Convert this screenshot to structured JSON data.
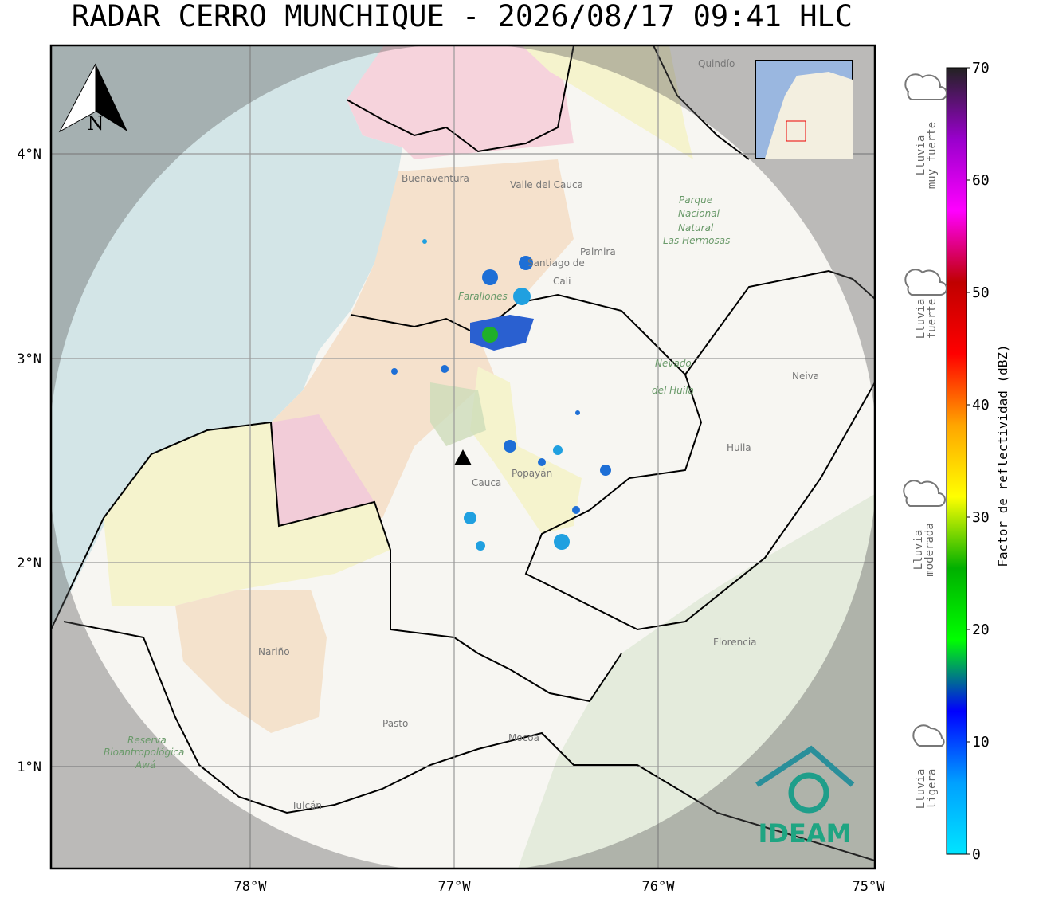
{
  "title": "RADAR CERRO MUNCHIQUE - 2026/08/17 09:41 HLC",
  "map": {
    "lat_labels": [
      "4°N",
      "3°N",
      "2°N",
      "1°N"
    ],
    "lon_labels": [
      "78°W",
      "77°W",
      "76°W",
      "75°W"
    ],
    "north": "N",
    "places": [
      "Buenaventura",
      "Valle del Cauca",
      "Palmira",
      "Santiago de",
      "Cali",
      "Parque",
      "Nacional",
      "Natural",
      "Las Hermosas",
      "Farallones",
      "Neiva",
      "Huila",
      "Cauca",
      "Popayán",
      "Nariño",
      "Florencia",
      "Pasto",
      "Mocoa",
      "Reserva",
      "Bioantropológica",
      "Awá",
      "Tulcán",
      "Quindío",
      "Nevado",
      "del Huila"
    ],
    "logo": "IDEAM"
  },
  "colorbar": {
    "label": "Factor de reflectividad (dBZ)",
    "lim": [
      0,
      70
    ],
    "ticks": [
      0,
      10,
      20,
      30,
      40,
      50,
      60,
      70
    ],
    "colors": [
      "#00e5ff",
      "#00a0ff",
      "#0000ff",
      "#00ff00",
      "#00b000",
      "#ffff00",
      "#ffa500",
      "#ff0000",
      "#c00000",
      "#ff00ff",
      "#9900cc",
      "#222222"
    ]
  },
  "rain_levels": [
    [
      "Lluvia",
      "muy fuerte"
    ],
    [
      "Lluvia",
      "fuerte"
    ],
    [
      "Lluvia",
      "moderada"
    ],
    [
      "Lluvia",
      "ligera"
    ]
  ]
}
